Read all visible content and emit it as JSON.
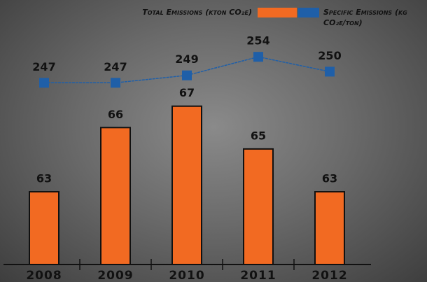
{
  "chart_data": {
    "type": "bar_line",
    "categories": [
      "2008",
      "2009",
      "2010",
      "2011",
      "2012"
    ],
    "series": [
      {
        "name": "Total Emissions (kton CO₂e)",
        "color": "#f26a22",
        "type": "bar",
        "values": [
          63,
          66,
          67,
          65,
          63
        ]
      },
      {
        "name": "Specific Emissions (kg CO₂e/ton)",
        "color": "#1f5fa8",
        "type": "line",
        "axis": "y2",
        "values": [
          247,
          247,
          249,
          254,
          250
        ]
      }
    ],
    "ylim": [
      59.6,
      70
    ],
    "y2lim": [
      198,
      258
    ],
    "grid": false,
    "legend": "top"
  }
}
